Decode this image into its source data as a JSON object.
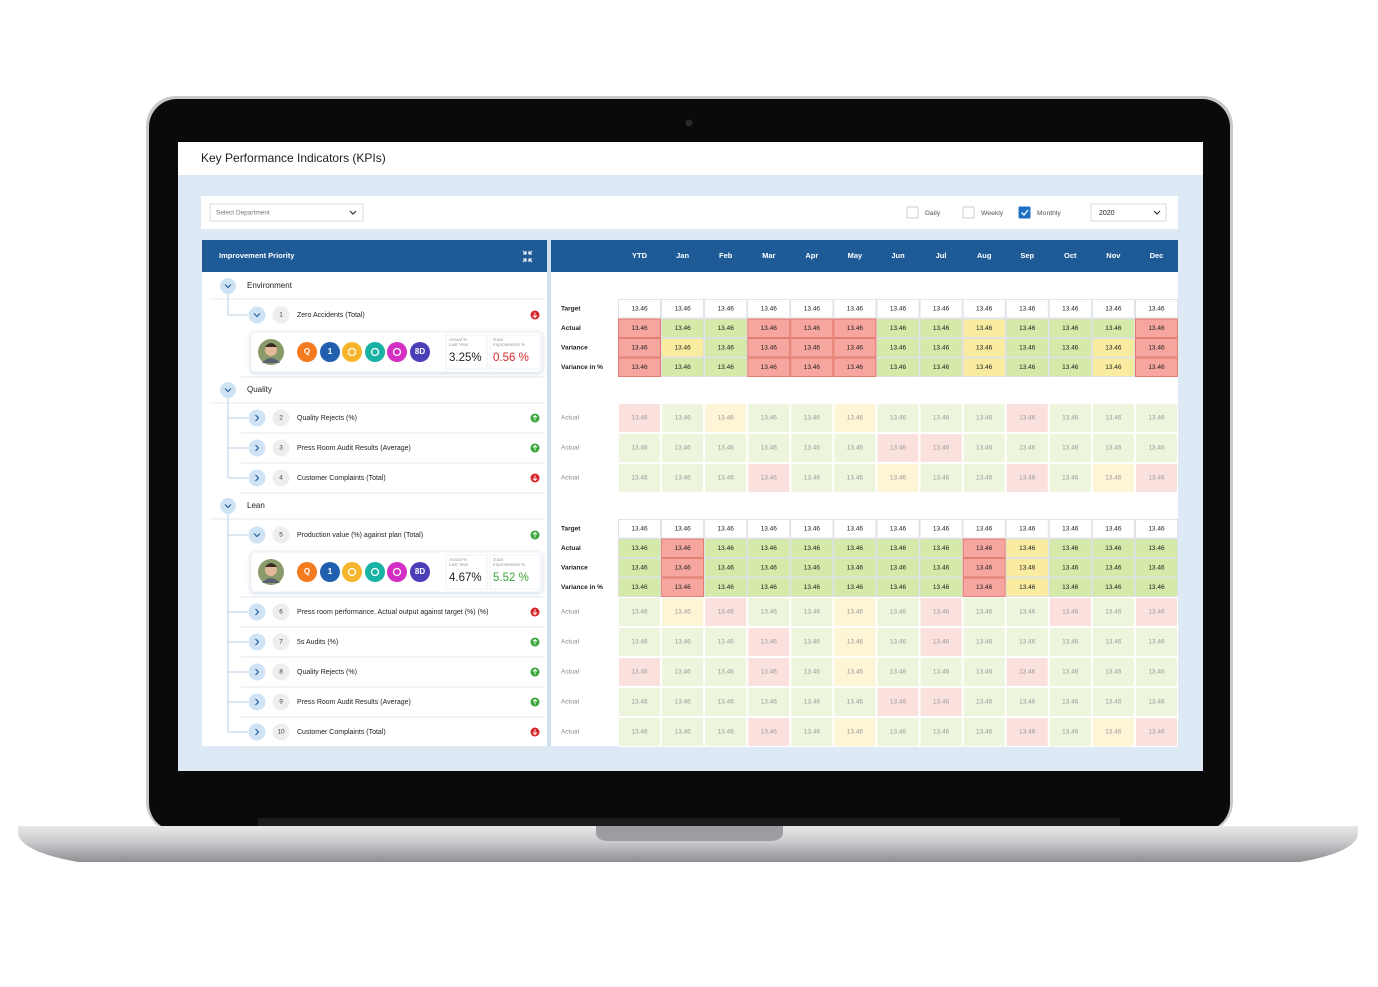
{
  "header": {
    "title": "Key Performance Indicators (KPIs)"
  },
  "filters": {
    "department": "Select Department",
    "options": [
      {
        "label": "Daily",
        "checked": false
      },
      {
        "label": "Weekly",
        "checked": false
      },
      {
        "label": "Monthly",
        "checked": true
      }
    ],
    "year": "2020"
  },
  "table": {
    "panel_title": "Improvement Priority",
    "columns": [
      "YTD",
      "Jan",
      "Feb",
      "Mar",
      "Apr",
      "May",
      "Jun",
      "Jul",
      "Aug",
      "Sep",
      "Oct",
      "Nov",
      "Dec"
    ],
    "groups": [
      {
        "name": "Environment",
        "items": [
          {
            "number": 1,
            "name": "Zero Accidents (Total)",
            "status_color": "#d7262b",
            "details": {
              "badges": [
                {
                  "text": "Q",
                  "color": "#f47b20"
                },
                {
                  "text": "1",
                  "color": "#1f5fae"
                },
                {
                  "color": "#f7b52c"
                },
                {
                  "color": "#19b3a6"
                },
                {
                  "color": "#d42fc4"
                },
                {
                  "text": "8D",
                  "color": "#4b3fb8"
                }
              ],
              "stats": [
                {
                  "label": [
                    "Actual %",
                    "Last Year"
                  ],
                  "value": "3.25%",
                  "color": "#222222"
                },
                {
                  "label": [
                    "Goal",
                    "Improvement %"
                  ],
                  "value": "0.56 %",
                  "color": "#d7262b"
                }
              ]
            },
            "rows": [
              {
                "label": "Target",
                "values": [
                  "13.46",
                  "13.46",
                  "13.46",
                  "13.46",
                  "13.46",
                  "13.46",
                  "13.46",
                  "13.46",
                  "13.46",
                  "13.46",
                  "13.46",
                  "13.46",
                  "13.46"
                ]
              },
              {
                "label": "Actual",
                "values": [
                  "13.46",
                  "13.46",
                  "13.46",
                  "13.46",
                  "13.46",
                  "13.46",
                  "13.46",
                  "13.46",
                  "13.46",
                  "13.46",
                  "13.46",
                  "13.46",
                  "13.46"
                ],
                "colors": [
                  "#f6a69e",
                  "#d5e9a8",
                  "#d5e9a8",
                  "#f6a69e",
                  "#f6a69e",
                  "#f6a69e",
                  "#d5e9a8",
                  "#d5e9a8",
                  "#f9eca0",
                  "#d5e9a8",
                  "#d5e9a8",
                  "#d5e9a8",
                  "#f6a69e"
                ]
              },
              {
                "label": "Variance",
                "values": [
                  "13.46",
                  "13.46",
                  "13.46",
                  "13.46",
                  "13.46",
                  "13.46",
                  "13.46",
                  "13.46",
                  "13.46",
                  "13.46",
                  "13.46",
                  "13.46",
                  "13.46"
                ],
                "colors": [
                  "#f6a69e",
                  "#f9eca0",
                  "#d5e9a8",
                  "#f6a69e",
                  "#f6a69e",
                  "#f6a69e",
                  "#d5e9a8",
                  "#d5e9a8",
                  "#f9eca0",
                  "#d5e9a8",
                  "#d5e9a8",
                  "#f9eca0",
                  "#f6a69e"
                ]
              },
              {
                "label": "Variance in %",
                "values": [
                  "13.46",
                  "13.46",
                  "13.46",
                  "13.46",
                  "13.46",
                  "13.46",
                  "13.46",
                  "13.46",
                  "13.46",
                  "13.46",
                  "13.46",
                  "13.46",
                  "13.46"
                ],
                "colors": [
                  "#f6a69e",
                  "#d5e9a8",
                  "#d5e9a8",
                  "#f6a69e",
                  "#f6a69e",
                  "#f6a69e",
                  "#d5e9a8",
                  "#d5e9a8",
                  "#f9eca0",
                  "#d5e9a8",
                  "#d5e9a8",
                  "#f9eca0",
                  "#f6a69e"
                ]
              }
            ]
          }
        ]
      },
      {
        "name": "Quality",
        "items": [
          {
            "number": 2,
            "name": "Quality Rejects (%)",
            "status_color": "#3aa63a",
            "rows": [
              {
                "label": "Actual",
                "values": [
                  "13.46",
                  "13.46",
                  "13.46",
                  "13.46",
                  "13.46",
                  "13.46",
                  "13.46",
                  "13.46",
                  "13.46",
                  "13.46",
                  "13.46",
                  "13.46",
                  "13.46"
                ],
                "colors": [
                  "#fbe1dd",
                  "#eef5dd",
                  "#fdf5d5",
                  "#eef5dd",
                  "#eef5dd",
                  "#fdf5d5",
                  "#eef5dd",
                  "#eef5dd",
                  "#eef5dd",
                  "#fbe1dd",
                  "#eef5dd",
                  "#eef5dd",
                  "#eef5dd"
                ]
              }
            ]
          },
          {
            "number": 3,
            "name": "Press Room Audit Results (Average)",
            "status_color": "#3aa63a",
            "rows": [
              {
                "label": "Actual",
                "values": [
                  "13.46",
                  "13.46",
                  "13.46",
                  "13.46",
                  "13.46",
                  "13.46",
                  "13.46",
                  "13.46",
                  "13.46",
                  "13.46",
                  "13.46",
                  "13.46",
                  "13.46"
                ],
                "colors": [
                  "#eef5dd",
                  "#eef5dd",
                  "#eef5dd",
                  "#eef5dd",
                  "#eef5dd",
                  "#eef5dd",
                  "#fbe1dd",
                  "#fbe1dd",
                  "#eef5dd",
                  "#eef5dd",
                  "#eef5dd",
                  "#eef5dd",
                  "#eef5dd"
                ]
              }
            ]
          },
          {
            "number": 4,
            "name": "Customer Complaints (Total)",
            "status_color": "#d7262b",
            "rows": [
              {
                "label": "Actual",
                "values": [
                  "13.46",
                  "13.46",
                  "13.46",
                  "13.46",
                  "13.46",
                  "13.46",
                  "13.46",
                  "13.46",
                  "13.46",
                  "13.46",
                  "13.46",
                  "13.46",
                  "13.46"
                ],
                "colors": [
                  "#eef5dd",
                  "#eef5dd",
                  "#eef5dd",
                  "#fbe1dd",
                  "#eef5dd",
                  "#eef5dd",
                  "#fdf5d5",
                  "#eef5dd",
                  "#eef5dd",
                  "#fbe1dd",
                  "#eef5dd",
                  "#fdf5d5",
                  "#fbe1dd"
                ]
              }
            ]
          }
        ]
      },
      {
        "name": "Lean",
        "items": [
          {
            "number": 5,
            "name": "Production value (%) against plan (Total)",
            "status_color": "#3aa63a",
            "details": {
              "badges": [
                {
                  "text": "Q",
                  "color": "#f47b20"
                },
                {
                  "text": "1",
                  "color": "#1f5fae"
                },
                {
                  "color": "#f7b52c"
                },
                {
                  "color": "#19b3a6"
                },
                {
                  "color": "#d42fc4"
                },
                {
                  "text": "8D",
                  "color": "#4b3fb8"
                }
              ],
              "stats": [
                {
                  "label": [
                    "Actual %",
                    "Last Year"
                  ],
                  "value": "4.67%",
                  "color": "#222222"
                },
                {
                  "label": [
                    "Goal",
                    "Improvement %"
                  ],
                  "value": "5.52 %",
                  "color": "#3aa63a"
                }
              ]
            },
            "rows": [
              {
                "label": "Target",
                "values": [
                  "13.46",
                  "13.46",
                  "13.46",
                  "13.46",
                  "13.46",
                  "13.46",
                  "13.46",
                  "13.46",
                  "13.46",
                  "13.46",
                  "13.46",
                  "13.46",
                  "13.46"
                ]
              },
              {
                "label": "Actual",
                "values": [
                  "13.46",
                  "13.46",
                  "13.46",
                  "13.46",
                  "13.46",
                  "13.46",
                  "13.46",
                  "13.46",
                  "13.46",
                  "13.46",
                  "13.46",
                  "13.46",
                  "13.46"
                ],
                "colors": [
                  "#d5e9a8",
                  "#f6a69e",
                  "#d5e9a8",
                  "#d5e9a8",
                  "#d5e9a8",
                  "#d5e9a8",
                  "#d5e9a8",
                  "#d5e9a8",
                  "#f6a69e",
                  "#f9eca0",
                  "#d5e9a8",
                  "#d5e9a8",
                  "#d5e9a8"
                ]
              },
              {
                "label": "Variance",
                "values": [
                  "13.46",
                  "13.46",
                  "13.46",
                  "13.46",
                  "13.46",
                  "13.46",
                  "13.46",
                  "13.46",
                  "13.46",
                  "13.46",
                  "13.46",
                  "13.46",
                  "13.46"
                ],
                "colors": [
                  "#d5e9a8",
                  "#f6a69e",
                  "#d5e9a8",
                  "#d5e9a8",
                  "#d5e9a8",
                  "#d5e9a8",
                  "#d5e9a8",
                  "#d5e9a8",
                  "#f6a69e",
                  "#f9eca0",
                  "#d5e9a8",
                  "#d5e9a8",
                  "#d5e9a8"
                ]
              },
              {
                "label": "Variance in %",
                "values": [
                  "13.46",
                  "13.46",
                  "13.46",
                  "13.46",
                  "13.46",
                  "13.46",
                  "13.46",
                  "13.46",
                  "13.46",
                  "13.46",
                  "13.46",
                  "13.46",
                  "13.46"
                ],
                "colors": [
                  "#d5e9a8",
                  "#f6a69e",
                  "#d5e9a8",
                  "#d5e9a8",
                  "#d5e9a8",
                  "#d5e9a8",
                  "#d5e9a8",
                  "#d5e9a8",
                  "#f6a69e",
                  "#f9eca0",
                  "#d5e9a8",
                  "#d5e9a8",
                  "#d5e9a8"
                ]
              }
            ]
          },
          {
            "number": 6,
            "name": "Press room performance. Actual output against target (%) (%)",
            "status_color": "#d7262b",
            "rows": [
              {
                "label": "Actual",
                "values": [
                  "13.46",
                  "13.46",
                  "13.46",
                  "13.46",
                  "13.46",
                  "13.46",
                  "13.46",
                  "13.46",
                  "13.46",
                  "13.46",
                  "13.46",
                  "13.46",
                  "13.46"
                ],
                "colors": [
                  "#eef5dd",
                  "#fdf5d5",
                  "#fbe1dd",
                  "#eef5dd",
                  "#eef5dd",
                  "#fdf5d5",
                  "#eef5dd",
                  "#fbe1dd",
                  "#eef5dd",
                  "#eef5dd",
                  "#fbe1dd",
                  "#eef5dd",
                  "#fbe1dd"
                ]
              }
            ]
          },
          {
            "number": 7,
            "name": "5s Audits (%)",
            "status_color": "#3aa63a",
            "rows": [
              {
                "label": "Actual",
                "values": [
                  "13.46",
                  "13.46",
                  "13.46",
                  "13.46",
                  "13.46",
                  "13.46",
                  "13.46",
                  "13.46",
                  "13.46",
                  "13.46",
                  "13.46",
                  "13.46",
                  "13.46"
                ],
                "colors": [
                  "#eef5dd",
                  "#eef5dd",
                  "#eef5dd",
                  "#fbe1dd",
                  "#eef5dd",
                  "#fdf5d5",
                  "#eef5dd",
                  "#fbe1dd",
                  "#eef5dd",
                  "#eef5dd",
                  "#eef5dd",
                  "#eef5dd",
                  "#eef5dd"
                ]
              }
            ]
          },
          {
            "number": 8,
            "name": "Quality Rejects (%)",
            "status_color": "#3aa63a",
            "rows": [
              {
                "label": "Actual",
                "values": [
                  "13.46",
                  "13.46",
                  "13.46",
                  "13.46",
                  "13.46",
                  "13.46",
                  "13.46",
                  "13.46",
                  "13.46",
                  "13.46",
                  "13.46",
                  "13.46",
                  "13.46"
                ],
                "colors": [
                  "#fbe1dd",
                  "#eef5dd",
                  "#eef5dd",
                  "#fbe1dd",
                  "#eef5dd",
                  "#fdf5d5",
                  "#eef5dd",
                  "#eef5dd",
                  "#eef5dd",
                  "#fbe1dd",
                  "#eef5dd",
                  "#eef5dd",
                  "#eef5dd"
                ]
              }
            ]
          },
          {
            "number": 9,
            "name": "Press Room Audit Results (Average)",
            "status_color": "#3aa63a",
            "rows": [
              {
                "label": "Actual",
                "values": [
                  "13.46",
                  "13.46",
                  "13.46",
                  "13.46",
                  "13.46",
                  "13.46",
                  "13.46",
                  "13.46",
                  "13.46",
                  "13.46",
                  "13.46",
                  "13.46",
                  "13.46"
                ],
                "colors": [
                  "#eef5dd",
                  "#eef5dd",
                  "#eef5dd",
                  "#eef5dd",
                  "#eef5dd",
                  "#eef5dd",
                  "#fbe1dd",
                  "#fbe1dd",
                  "#eef5dd",
                  "#eef5dd",
                  "#eef5dd",
                  "#eef5dd",
                  "#eef5dd"
                ]
              }
            ]
          },
          {
            "number": 10,
            "name": "Customer Complaints (Total)",
            "status_color": "#d7262b",
            "rows": [
              {
                "label": "Actual",
                "values": [
                  "13.46",
                  "13.46",
                  "13.46",
                  "13.46",
                  "13.46",
                  "13.46",
                  "13.46",
                  "13.46",
                  "13.46",
                  "13.46",
                  "13.46",
                  "13.46",
                  "13.46"
                ],
                "colors": [
                  "#eef5dd",
                  "#eef5dd",
                  "#eef5dd",
                  "#fbe1dd",
                  "#eef5dd",
                  "#fdf5d5",
                  "#eef5dd",
                  "#eef5dd",
                  "#eef5dd",
                  "#fbe1dd",
                  "#eef5dd",
                  "#fdf5d5",
                  "#fbe1dd"
                ]
              }
            ]
          }
        ]
      }
    ]
  }
}
